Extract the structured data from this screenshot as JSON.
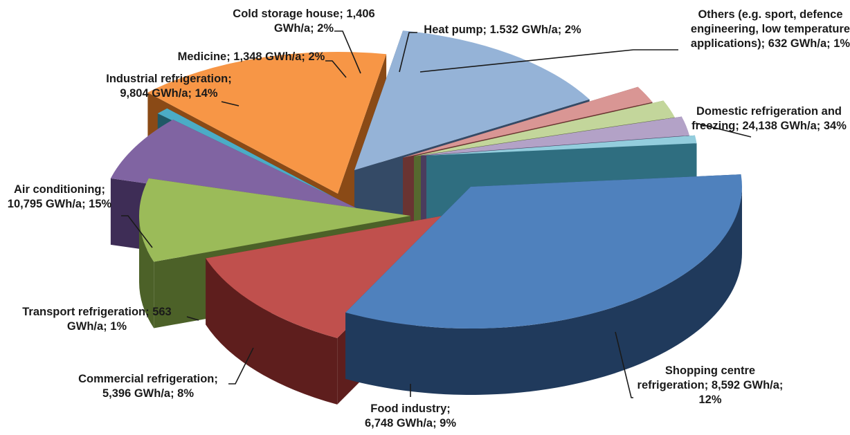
{
  "chart_data": {
    "type": "pie",
    "style": "3d-exploded",
    "slices": [
      {
        "name": "Domestic refrigeration  and freezing",
        "value": 24138,
        "percent": 34,
        "unit": "GWh/a",
        "label_lines": [
          "Domestic refrigeration  and",
          "freezing; 24,138 GWh/a; 34%"
        ],
        "color": "#4F81BD",
        "dark": "#203A5C"
      },
      {
        "name": "Shopping centre refrigeration",
        "value": 8592,
        "percent": 12,
        "unit": "GWh/a",
        "label_lines": [
          "Shopping centre",
          "refrigeration; 8,592  GWh/a;",
          "12%"
        ],
        "color": "#C0504D",
        "dark": "#5E1E1D"
      },
      {
        "name": "Food industry",
        "value": 6748,
        "percent": 9,
        "unit": "GWh/a",
        "label_lines": [
          "Food industry;",
          "6,748 GWh/a; 9%"
        ],
        "color": "#9BBB59",
        "dark": "#4C6128"
      },
      {
        "name": "Commercial refrigeration",
        "value": 5396,
        "percent": 8,
        "unit": "GWh/a",
        "label_lines": [
          "Commercial refrigeration;",
          "5,396 GWh/a; 8%"
        ],
        "color": "#8064A2",
        "dark": "#3E2D56"
      },
      {
        "name": "Transport refrigeration",
        "value": 563,
        "percent": 1,
        "unit": "GWh/a",
        "label_lines": [
          "Transport refrigeration;  563",
          "GWh/a; 1%"
        ],
        "color": "#4BACC6",
        "dark": "#1F5866"
      },
      {
        "name": "Air conditioning",
        "value": 10795,
        "percent": 15,
        "unit": "GWh/a",
        "label_lines": [
          "Air conditioning;",
          "10,795 GWh/a; 15%"
        ],
        "color": "#F79646",
        "dark": "#8A4A16"
      },
      {
        "name": "Industrial refrigeration",
        "value": 9804,
        "percent": 14,
        "unit": "GWh/a",
        "label_lines": [
          "Industrial refrigeration;",
          "9,804  GWh/a; 14%"
        ],
        "color": "#95B3D7",
        "dark": "#344A66"
      },
      {
        "name": "Medicine",
        "value": 1348,
        "percent": 2,
        "unit": "GWh/a",
        "label_lines": [
          "Medicine; 1,348  GWh/a; 2%"
        ],
        "color": "#D99694",
        "dark": "#6A3432"
      },
      {
        "name": "Cold storage house",
        "value": 1406,
        "percent": 2,
        "unit": "GWh/a",
        "label_lines": [
          "Cold storage  house; 1,406",
          "GWh/a; 2%"
        ],
        "color": "#C3D69B",
        "dark": "#56692F"
      },
      {
        "name": "Heat pump",
        "value": 1532,
        "percent": 2,
        "unit": "GWh/a",
        "label_lines": [
          "Heat pump; 1.532 GWh/a; 2%"
        ],
        "color": "#B3A2C7",
        "dark": "#4A3C5E"
      },
      {
        "name": "Others (e.g. sport, defence engineering, low temperature applications)",
        "value": 632,
        "percent": 1,
        "unit": "GWh/a",
        "label_lines": [
          "Others (e.g. sport,  defence",
          "engineering, low temperature",
          "applications); 632  GWh/a; 1%"
        ],
        "color": "#93CDDD",
        "dark": "#2F6E80"
      }
    ],
    "title": "",
    "legend": "none"
  }
}
